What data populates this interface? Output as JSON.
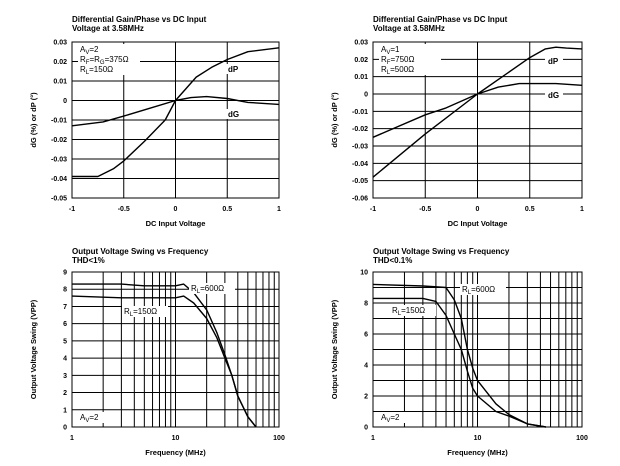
{
  "chart_data": [
    {
      "type": "line",
      "title": [
        "Differential Gain/Phase vs DC Input",
        "Voltage at 3.58MHz"
      ],
      "xlabel": "DC Input Voltage",
      "ylabel": "dG (%) or dP (°)",
      "xscale": "linear",
      "xlim": [
        -1,
        1
      ],
      "ylim": [
        -0.05,
        0.03
      ],
      "xticks": [
        -1,
        -0.5,
        0,
        0.5,
        1
      ],
      "xtick_labels": [
        "-1",
        "-0.5",
        "0",
        "0.5",
        "1"
      ],
      "yticks": [
        0.03,
        0.02,
        0.01,
        0,
        -0.01,
        -0.02,
        -0.03,
        -0.04,
        -0.05
      ],
      "ytick_labels": [
        "0.03",
        "0.02",
        "0.01",
        "0",
        "-0.01",
        "-0.02",
        "-0.03",
        "-0.04",
        "-0.05"
      ],
      "annotations": [
        [
          [
            "A",
            "V",
            "=2"
          ]
        ],
        [
          [
            "R",
            "F",
            "=R"
          ],
          [
            "",
            "G",
            "=375Ω"
          ]
        ],
        [
          [
            "R",
            "L",
            "=150Ω"
          ]
        ]
      ],
      "series": [
        {
          "name": "dP",
          "x": [
            -1,
            -0.75,
            -0.6,
            -0.5,
            -0.3,
            -0.1,
            0,
            0.2,
            0.35,
            0.5,
            0.7,
            1
          ],
          "y": [
            -0.039,
            -0.039,
            -0.035,
            -0.031,
            -0.021,
            -0.01,
            0,
            0.012,
            0.017,
            0.021,
            0.025,
            0.027
          ]
        },
        {
          "name": "dG",
          "x": [
            -1,
            -0.7,
            -0.5,
            -0.25,
            0,
            0.15,
            0.3,
            0.5,
            0.7,
            1
          ],
          "y": [
            -0.013,
            -0.011,
            -0.008,
            -0.004,
            0,
            0.0015,
            0.002,
            0.001,
            -0.001,
            -0.002
          ]
        }
      ]
    },
    {
      "type": "line",
      "title": [
        "Differential Gain/Phase vs DC Input",
        "Voltage at 3.58MHz"
      ],
      "xlabel": "DC Input Voltage",
      "ylabel": "dG (%) or dP (°)",
      "xscale": "linear",
      "xlim": [
        -1,
        1
      ],
      "ylim": [
        -0.06,
        0.03
      ],
      "xticks": [
        -1,
        -0.5,
        0,
        0.5,
        1
      ],
      "xtick_labels": [
        "-1",
        "-0.5",
        "0",
        "0.5",
        "1"
      ],
      "yticks": [
        0.03,
        0.02,
        0.01,
        0,
        -0.01,
        -0.02,
        -0.03,
        -0.04,
        -0.05,
        -0.06
      ],
      "ytick_labels": [
        "0.03",
        "0.02",
        "0.01",
        "0",
        "-0.01",
        "-0.02",
        "-0.03",
        "-0.04",
        "-0.05",
        "-0.06"
      ],
      "annotations": [
        [
          [
            "A",
            "V",
            "=1"
          ]
        ],
        [
          [
            "R",
            "F",
            "=750Ω"
          ]
        ],
        [
          [
            "R",
            "L",
            "=500Ω"
          ]
        ]
      ],
      "series": [
        {
          "name": "dP",
          "x": [
            -1,
            -0.5,
            0,
            0.5,
            0.65,
            0.75,
            0.85,
            1
          ],
          "y": [
            -0.048,
            -0.023,
            0,
            0.021,
            0.026,
            0.027,
            0.0265,
            0.026
          ]
        },
        {
          "name": "dG",
          "x": [
            -1,
            -0.5,
            -0.3,
            0,
            0.2,
            0.4,
            0.75,
            1
          ],
          "y": [
            -0.025,
            -0.012,
            -0.008,
            0,
            0.004,
            0.006,
            0.006,
            0.005
          ]
        }
      ]
    },
    {
      "type": "line",
      "title": [
        "Output Voltage Swing vs Frequency",
        "THD<1%"
      ],
      "xlabel": "Frequency (MHz)",
      "ylabel": "Output Voltage Swing (VPP)",
      "xscale": "log",
      "xlim": [
        1,
        100
      ],
      "ylim": [
        0,
        9
      ],
      "xtick_labels": [
        "1",
        "10",
        "100"
      ],
      "yticks": [
        9,
        8,
        7,
        6,
        5,
        4,
        3,
        2,
        1,
        0
      ],
      "ytick_labels": [
        "9",
        "8",
        "7",
        "6",
        "5",
        "4",
        "3",
        "2",
        "1",
        "0"
      ],
      "annotations": [
        [
          [
            "A",
            "V",
            "=2"
          ]
        ]
      ],
      "series": [
        {
          "name": "RL=600Ω",
          "label": [
            [
              "R",
              "L",
              "=600Ω"
            ]
          ],
          "x": [
            1,
            3,
            5,
            8,
            10,
            12,
            15,
            20,
            25,
            30,
            35,
            40,
            50,
            60
          ],
          "y": [
            8.3,
            8.3,
            8.2,
            8.2,
            8.2,
            8.3,
            7.8,
            6.8,
            5.5,
            4.2,
            3.0,
            1.8,
            0.6,
            0
          ]
        },
        {
          "name": "RL=150Ω",
          "label": [
            [
              "R",
              "L",
              "=150Ω"
            ]
          ],
          "x": [
            1,
            3,
            5,
            8,
            10,
            12,
            15,
            20,
            25,
            30,
            35,
            40,
            50,
            60
          ],
          "y": [
            7.6,
            7.5,
            7.5,
            7.5,
            7.5,
            7.6,
            7.2,
            6.3,
            5.2,
            4.0,
            3.0,
            1.8,
            0.6,
            0
          ]
        }
      ]
    },
    {
      "type": "line",
      "title": [
        "Output Voltage Swing vs Frequency",
        "THD<0.1%"
      ],
      "xlabel": "Frequency (MHz)",
      "ylabel": "Output Voltage Swing (VPP)",
      "xscale": "log",
      "xlim": [
        1,
        100
      ],
      "ylim": [
        0,
        10
      ],
      "xtick_labels": [
        "1",
        "10",
        "100"
      ],
      "yticks": [
        10,
        8,
        6,
        4,
        2,
        0
      ],
      "ytick_labels": [
        "10",
        "8",
        "6",
        "4",
        "2",
        "0"
      ],
      "annotations": [
        [
          [
            "A",
            "V",
            "=2"
          ]
        ]
      ],
      "series": [
        {
          "name": "RL=600Ω",
          "label": [
            [
              "R",
              "L",
              "=600Ω"
            ]
          ],
          "x": [
            1,
            3,
            5,
            6,
            7,
            8,
            9,
            10,
            15,
            20,
            30,
            45
          ],
          "y": [
            9.2,
            9.1,
            9.0,
            8.2,
            7.0,
            5.0,
            3.8,
            3.0,
            1.5,
            0.8,
            0.2,
            0
          ]
        },
        {
          "name": "RL=150Ω",
          "label": [
            [
              "R",
              "L",
              "=150Ω"
            ]
          ],
          "x": [
            1,
            3,
            4,
            5,
            6,
            7,
            8,
            9,
            10,
            15,
            20,
            30,
            45
          ],
          "y": [
            8.3,
            8.3,
            8.1,
            7.2,
            6.0,
            5.0,
            3.6,
            2.5,
            2.0,
            1.0,
            0.7,
            0.2,
            0
          ]
        }
      ]
    }
  ]
}
